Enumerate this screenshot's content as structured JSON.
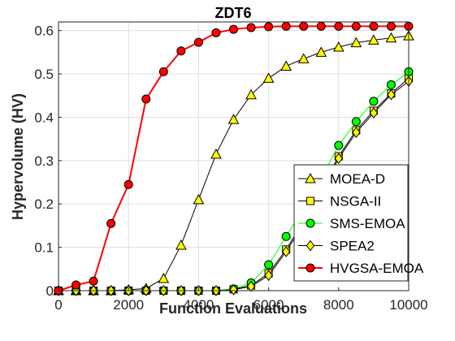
{
  "chart_data": {
    "type": "line",
    "title": "ZDT6",
    "xlabel": "Function Evaluations",
    "ylabel": "Hypervolume (HV)",
    "xlim": [
      0,
      10000
    ],
    "ylim": [
      0,
      0.62
    ],
    "xticks": [
      0,
      2000,
      4000,
      6000,
      8000,
      10000
    ],
    "yticks": [
      0,
      0.1,
      0.2,
      0.3,
      0.4,
      0.5,
      0.6
    ],
    "xtick_labels": [
      "0",
      "2000",
      "4000",
      "6000",
      "8000",
      "10000"
    ],
    "ytick_labels": [
      "0",
      "0.1",
      "0.2",
      "0.3",
      "0.4",
      "0.5",
      "0.6"
    ],
    "grid": true,
    "legend_position": "bottom-right",
    "x": [
      0,
      500,
      1000,
      1500,
      2000,
      2500,
      3000,
      3500,
      4000,
      4500,
      5000,
      5500,
      6000,
      6500,
      7000,
      7500,
      8000,
      8500,
      9000,
      9500,
      10000
    ],
    "series": [
      {
        "name": "MOEA-D",
        "marker": "triangle",
        "line_color": "#000000",
        "marker_color": "#ffff00",
        "values": [
          0,
          0,
          0,
          0,
          0.002,
          0.005,
          0.028,
          0.105,
          0.21,
          0.315,
          0.395,
          0.452,
          0.49,
          0.518,
          0.535,
          0.55,
          0.562,
          0.572,
          0.578,
          0.583,
          0.588
        ]
      },
      {
        "name": "NSGA-II",
        "marker": "square",
        "line_color": "#000000",
        "marker_color": "#ffff00",
        "values": [
          0,
          0,
          0,
          0,
          0,
          0,
          0,
          0,
          0,
          0,
          0.003,
          0.012,
          0.04,
          0.095,
          0.16,
          0.235,
          0.31,
          0.37,
          0.415,
          0.455,
          0.49
        ]
      },
      {
        "name": "SMS-EMOA",
        "marker": "circle",
        "line_color": "#00ff00",
        "marker_color": "#00ff00",
        "values": [
          0,
          0,
          0,
          0,
          0,
          0,
          0,
          0,
          0,
          0,
          0.004,
          0.018,
          0.06,
          0.125,
          0.19,
          0.26,
          0.335,
          0.39,
          0.437,
          0.475,
          0.505
        ]
      },
      {
        "name": "SPEA2",
        "marker": "diamond",
        "line_color": "#000000",
        "marker_color": "#ffff00",
        "values": [
          0,
          0,
          0,
          0,
          0,
          0,
          0,
          0,
          0,
          0,
          0.002,
          0.01,
          0.035,
          0.09,
          0.155,
          0.23,
          0.305,
          0.365,
          0.41,
          0.452,
          0.483
        ]
      },
      {
        "name": "HVGSA-EMOA",
        "marker": "circle",
        "line_color": "#ff0000",
        "marker_color": "#ff0000",
        "values": [
          0,
          0.013,
          0.022,
          0.155,
          0.245,
          0.442,
          0.505,
          0.553,
          0.573,
          0.595,
          0.603,
          0.607,
          0.609,
          0.61,
          0.61,
          0.61,
          0.61,
          0.61,
          0.61,
          0.61,
          0.61
        ]
      }
    ]
  }
}
